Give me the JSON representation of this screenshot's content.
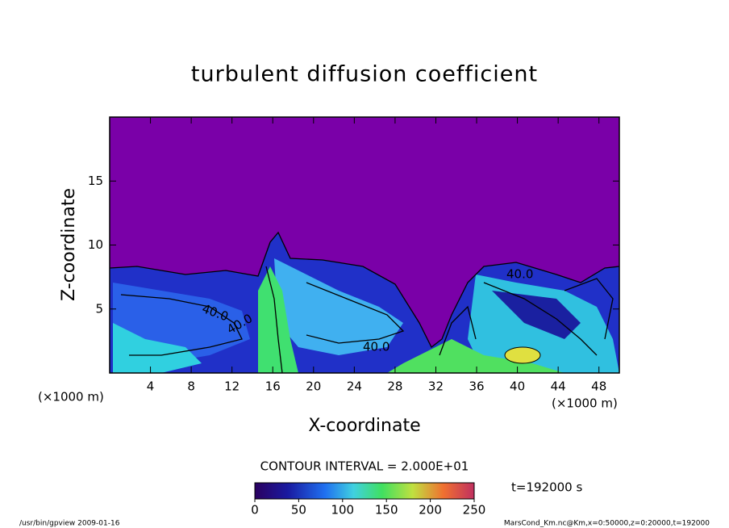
{
  "chart_data": {
    "type": "contour",
    "title": "turbulent diffusion coefficient",
    "x_label": "X-coordinate",
    "y_label": "Z-coordinate",
    "x_unit": "(×1000 m)",
    "x_unit_right": "(×1000 m)",
    "xlim": [
      0,
      50
    ],
    "xticks": [
      4,
      8,
      12,
      16,
      20,
      24,
      28,
      32,
      36,
      40,
      44,
      48
    ],
    "ylim": [
      0,
      20
    ],
    "yticks": [
      5,
      10,
      15
    ],
    "contour_interval": "CONTOUR INTERVAL = 2.000E+01",
    "contour_labels": [
      "40.0",
      "40.0",
      "40.0",
      "40.0"
    ],
    "colorbar": {
      "lim": [
        0,
        250
      ],
      "ticks": [
        0,
        50,
        100,
        150,
        200,
        250
      ]
    },
    "time_label": "t=192000 s",
    "footer_left": "/usr/bin/gpview  2009-01-16",
    "footer_right": "MarsCond_Km.nc@Km,x=0:50000,z=0:20000,t=192000"
  }
}
